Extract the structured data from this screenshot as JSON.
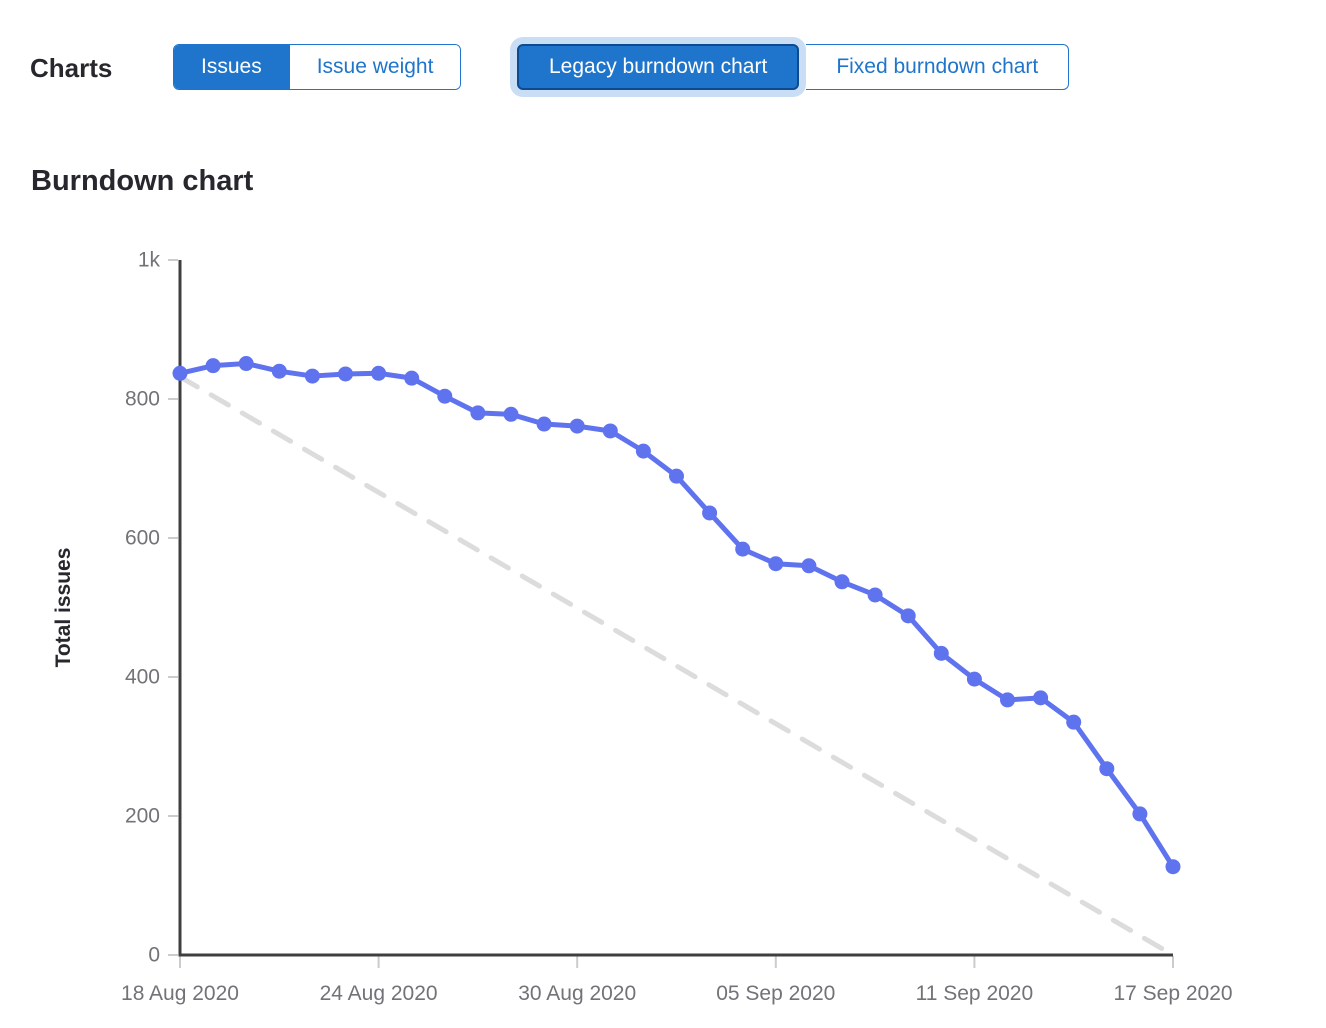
{
  "toolbar": {
    "charts_label": "Charts",
    "metric_toggle": [
      {
        "label": "Issues",
        "selected": true
      },
      {
        "label": "Issue weight",
        "selected": false
      }
    ],
    "chart_type_toggle": [
      {
        "label": "Legacy burndown chart",
        "selected": true,
        "focused": true
      },
      {
        "label": "Fixed burndown chart",
        "selected": false
      }
    ]
  },
  "colors": {
    "accent_blue": "#1f75cb",
    "focused_button_border": "#0d4a8f",
    "focus_halo": "#c9def5",
    "series_line_blue": "#5f73ee",
    "guideline_gray": "#dcdcdc",
    "axis_line_dark": "#3f3f41",
    "tick_mark_gray": "#cccccc",
    "axis_label_gray": "#737278",
    "heading_dark": "#28272d"
  },
  "chart_data": {
    "type": "line",
    "title": "Burndown chart",
    "xlabel": "",
    "ylabel": "Total issues",
    "ylim": [
      0,
      1000
    ],
    "x_range_days": 30,
    "grid": false,
    "legend_position": "none",
    "y_ticks": [
      {
        "value": 0,
        "label": "0"
      },
      {
        "value": 200,
        "label": "200"
      },
      {
        "value": 400,
        "label": "400"
      },
      {
        "value": 600,
        "label": "600"
      },
      {
        "value": 800,
        "label": "800"
      },
      {
        "value": 1000,
        "label": "1k"
      }
    ],
    "x_ticks": [
      {
        "day": 0,
        "label": "18 Aug 2020"
      },
      {
        "day": 6,
        "label": "24 Aug 2020"
      },
      {
        "day": 12,
        "label": "30 Aug 2020"
      },
      {
        "day": 18,
        "label": "05 Sep 2020"
      },
      {
        "day": 24,
        "label": "11 Sep 2020"
      },
      {
        "day": 30,
        "label": "17 Sep 2020"
      }
    ],
    "series": [
      {
        "name": "total-issues",
        "type": "line",
        "color": "#5f73ee",
        "start_day": 0,
        "values": [
          837,
          848,
          851,
          840,
          833,
          836,
          837,
          830,
          804,
          780,
          778,
          764,
          761,
          754,
          725,
          689,
          636,
          584,
          563,
          560,
          537,
          518,
          488,
          434,
          397,
          367,
          370,
          335,
          268,
          203,
          127
        ]
      }
    ],
    "guideline": {
      "name": "ideal-burndown",
      "style": "dashed",
      "color": "#dcdcdc",
      "start_day": 0,
      "start_value": 832,
      "end_day": 30,
      "end_value": 0
    }
  }
}
